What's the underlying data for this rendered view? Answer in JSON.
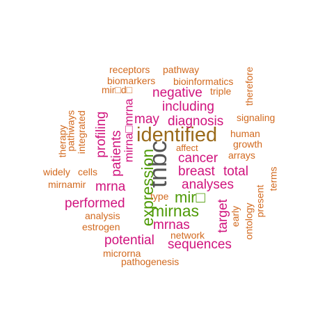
{
  "colors": {
    "orange": "#d2691e",
    "magenta": "#d0137d",
    "green": "#4e9a06",
    "olive": "#9a6a1a",
    "dark": "#555555"
  },
  "words": [
    {
      "text": "tnbc",
      "color": "dark"
    },
    {
      "text": "identified",
      "color": "olive"
    },
    {
      "text": "expression",
      "color": "green"
    },
    {
      "text": "mirnas",
      "color": "green"
    },
    {
      "text": "mir□",
      "color": "green"
    },
    {
      "text": "mirna□mrna",
      "color": "magenta"
    },
    {
      "text": "patients",
      "color": "magenta"
    },
    {
      "text": "profiling",
      "color": "magenta"
    },
    {
      "text": "negative",
      "color": "magenta"
    },
    {
      "text": "including",
      "color": "magenta"
    },
    {
      "text": "diagnosis",
      "color": "magenta"
    },
    {
      "text": "may",
      "color": "magenta"
    },
    {
      "text": "cancer",
      "color": "magenta"
    },
    {
      "text": "breast",
      "color": "magenta"
    },
    {
      "text": "total",
      "color": "magenta"
    },
    {
      "text": "analyses",
      "color": "magenta"
    },
    {
      "text": "target",
      "color": "magenta"
    },
    {
      "text": "performed",
      "color": "magenta"
    },
    {
      "text": "mrna",
      "color": "magenta"
    },
    {
      "text": "mrnas",
      "color": "magenta"
    },
    {
      "text": "potential",
      "color": "magenta"
    },
    {
      "text": "sequences",
      "color": "magenta"
    },
    {
      "text": "receptors",
      "color": "orange"
    },
    {
      "text": "pathway",
      "color": "orange"
    },
    {
      "text": "biomarkers",
      "color": "orange"
    },
    {
      "text": "bioinformatics",
      "color": "orange"
    },
    {
      "text": "mir□d□",
      "color": "orange"
    },
    {
      "text": "triple",
      "color": "orange"
    },
    {
      "text": "therefore",
      "color": "orange"
    },
    {
      "text": "signaling",
      "color": "orange"
    },
    {
      "text": "human",
      "color": "orange"
    },
    {
      "text": "growth",
      "color": "orange"
    },
    {
      "text": "arrays",
      "color": "orange"
    },
    {
      "text": "affect",
      "color": "orange"
    },
    {
      "text": "therapy",
      "color": "orange"
    },
    {
      "text": "pathways",
      "color": "orange"
    },
    {
      "text": "integrated",
      "color": "orange"
    },
    {
      "text": "widely",
      "color": "orange"
    },
    {
      "text": "cells",
      "color": "orange"
    },
    {
      "text": "mirnamir",
      "color": "orange"
    },
    {
      "text": "terms",
      "color": "orange"
    },
    {
      "text": "present",
      "color": "orange"
    },
    {
      "text": "early",
      "color": "orange"
    },
    {
      "text": "ontology",
      "color": "orange"
    },
    {
      "text": "type",
      "color": "orange"
    },
    {
      "text": "analysis",
      "color": "orange"
    },
    {
      "text": "estrogen",
      "color": "orange"
    },
    {
      "text": "network",
      "color": "orange"
    },
    {
      "text": "microrna",
      "color": "orange"
    },
    {
      "text": "pathogenesis",
      "color": "orange"
    }
  ]
}
